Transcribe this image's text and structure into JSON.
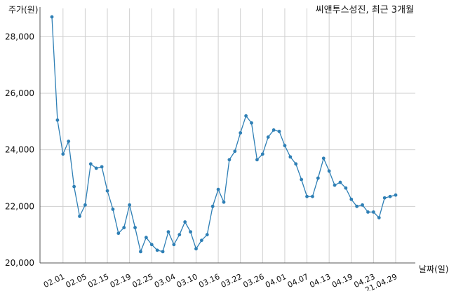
{
  "chart_data": {
    "type": "line",
    "title": "씨앤투스성진, 최근 3개월",
    "ylabel": "주가(원)",
    "xlabel": "날짜(일)",
    "ylim": [
      20000,
      29000
    ],
    "yticks": [
      20000,
      22000,
      24000,
      26000,
      28000
    ],
    "ytick_labels": [
      "20,000",
      "22,000",
      "24,000",
      "26,000",
      "28,000"
    ],
    "xtick_labels": [
      "02.01",
      "02.05",
      "02.15",
      "02.19",
      "02.25",
      "03.04",
      "03.10",
      "03.16",
      "03.22",
      "03.26",
      "04.01",
      "04.07",
      "04.13",
      "04.19",
      "04.23",
      "21.04.29"
    ],
    "xtick_positions": [
      2,
      6,
      10,
      14,
      18,
      22,
      26,
      30,
      34,
      38,
      42,
      46,
      50,
      54,
      58,
      62
    ],
    "grid": true,
    "color": "#2e7fb5",
    "series": [
      {
        "values": [
          28700,
          25050,
          23850,
          24300,
          22700,
          21650,
          22050,
          23500,
          23350,
          23400,
          22550,
          21900,
          21050,
          21250,
          22050,
          21250,
          20400,
          20900,
          20650,
          20450,
          20400,
          21100,
          20650,
          21000,
          21450,
          21100,
          20500,
          20800,
          21000,
          22000,
          22600,
          22150,
          23650,
          23950,
          24600,
          25200,
          24950,
          23650,
          23850,
          24450,
          24700,
          24650,
          24150,
          23750,
          23500,
          22950,
          22350,
          22350,
          23000,
          23700,
          23250,
          22750,
          22850,
          22650,
          22250,
          22000,
          22050,
          21800,
          21800,
          21600,
          22300,
          22350,
          22400
        ]
      }
    ]
  }
}
